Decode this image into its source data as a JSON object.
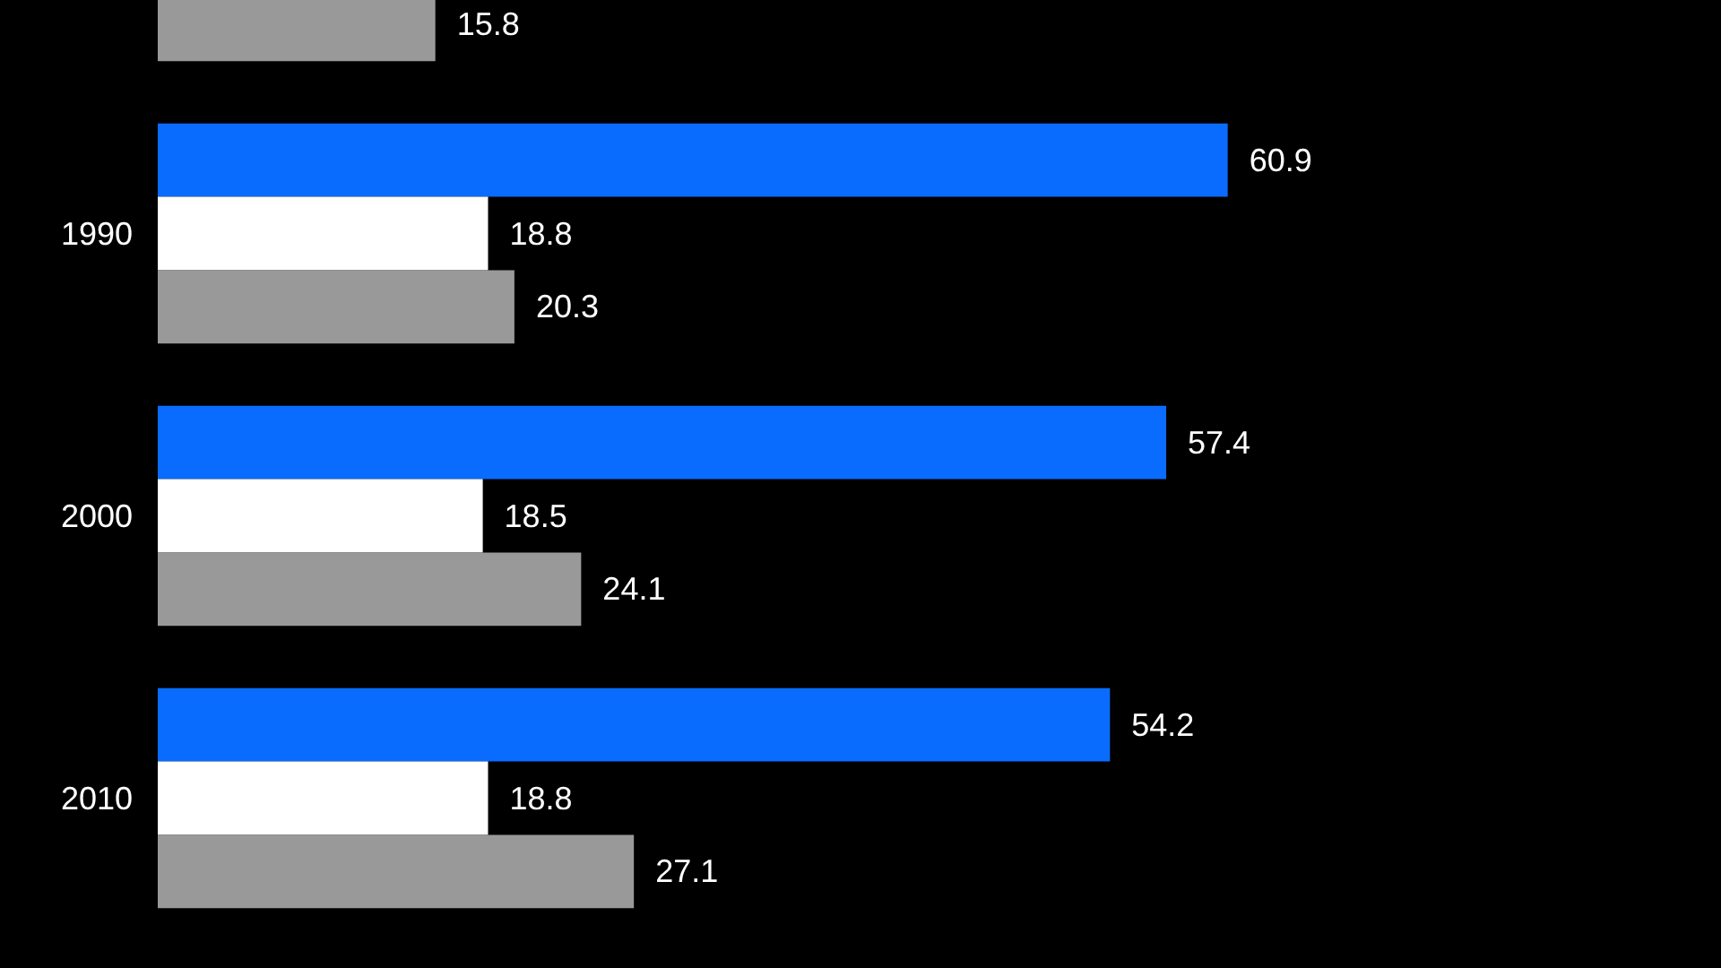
{
  "chart_data": {
    "type": "bar",
    "orientation": "horizontal",
    "categories": [
      null,
      "1990",
      "2000",
      "2010"
    ],
    "series": [
      {
        "color": "#0a6cff",
        "values": [
          null,
          60.9,
          57.4,
          54.2
        ]
      },
      {
        "color": "#ffffff",
        "values": [
          null,
          18.8,
          18.5,
          18.8
        ]
      },
      {
        "color": "#999999",
        "values": [
          15.8,
          20.3,
          24.1,
          27.1
        ]
      }
    ],
    "data_labels": true,
    "tick_labels": "y"
  }
}
